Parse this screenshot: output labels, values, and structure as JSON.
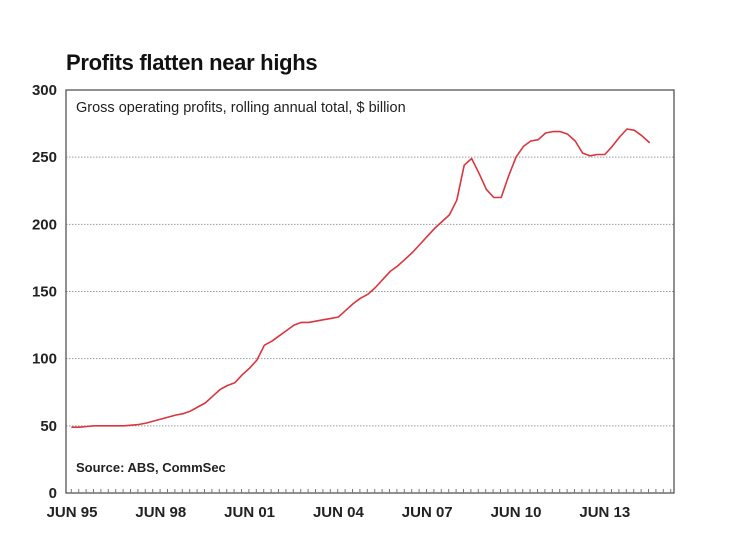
{
  "chart_data": {
    "type": "line",
    "title": "Profits flatten near highs",
    "subtitle": "Gross operating profits, rolling annual total, $ billion",
    "source": "Source: ABS, CommSec",
    "xlabel": "",
    "ylabel": "",
    "ylim": [
      0,
      300
    ],
    "yticks": [
      0,
      50,
      100,
      150,
      200,
      250,
      300
    ],
    "xtick_labels": [
      "JUN 95",
      "JUN 98",
      "JUN 01",
      "JUN 04",
      "JUN 07",
      "JUN 10",
      "JUN 13"
    ],
    "xtick_quarter_index": [
      0,
      12,
      24,
      36,
      48,
      60,
      72
    ],
    "grid": "horizontal dotted",
    "line_color": "#d9363e",
    "series": [
      {
        "name": "Gross operating profits",
        "x": [
          "Jun95",
          "Sep95",
          "Dec95",
          "Mar96",
          "Jun96",
          "Sep96",
          "Dec96",
          "Mar97",
          "Jun97",
          "Sep97",
          "Dec97",
          "Mar98",
          "Jun98",
          "Sep98",
          "Dec98",
          "Mar99",
          "Jun99",
          "Sep99",
          "Dec99",
          "Mar00",
          "Jun00",
          "Sep00",
          "Dec00",
          "Mar01",
          "Jun01",
          "Sep01",
          "Dec01",
          "Mar02",
          "Jun02",
          "Sep02",
          "Dec02",
          "Mar03",
          "Jun03",
          "Sep03",
          "Dec03",
          "Mar04",
          "Jun04",
          "Sep04",
          "Dec04",
          "Mar05",
          "Jun05",
          "Sep05",
          "Dec05",
          "Mar06",
          "Jun06",
          "Sep06",
          "Dec06",
          "Mar07",
          "Jun07",
          "Sep07",
          "Dec07",
          "Mar08",
          "Jun08",
          "Sep08",
          "Dec08",
          "Mar09",
          "Jun09",
          "Sep09",
          "Dec09",
          "Mar10",
          "Jun10",
          "Sep10",
          "Dec10",
          "Mar11",
          "Jun11",
          "Sep11",
          "Dec11",
          "Mar12",
          "Jun12",
          "Sep12",
          "Dec12",
          "Mar13",
          "Jun13",
          "Sep13",
          "Dec13",
          "Mar14",
          "Jun14",
          "Sep14",
          "Dec14"
        ],
        "values": [
          49,
          49,
          49.5,
          50,
          50,
          50,
          50,
          50,
          50.5,
          51,
          52,
          53.5,
          55,
          56.5,
          58,
          59,
          61,
          64,
          67,
          72,
          77,
          80,
          82,
          88,
          93,
          99,
          110,
          113,
          117,
          121,
          125,
          127,
          127,
          128,
          129,
          130,
          131,
          136,
          141,
          145,
          148,
          153,
          159,
          165,
          169,
          174,
          179,
          185,
          191,
          197,
          202,
          207,
          218,
          244,
          249,
          238,
          226,
          220,
          220,
          236,
          250,
          258,
          262,
          263,
          268,
          269,
          269,
          267,
          262,
          253,
          251,
          252,
          252,
          258,
          265,
          271,
          270,
          266,
          261
        ]
      }
    ]
  }
}
